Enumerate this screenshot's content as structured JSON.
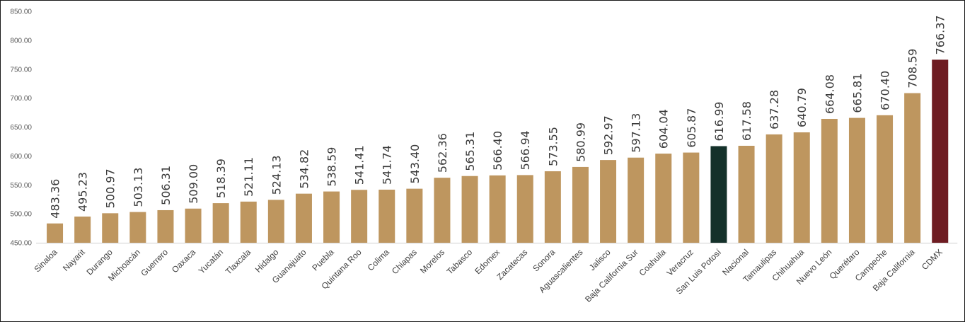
{
  "chart_data": {
    "type": "bar",
    "title": "",
    "xlabel": "",
    "ylabel": "",
    "ylim": [
      450,
      850
    ],
    "yticks": [
      "450.00",
      "500.00",
      "550.00",
      "600.00",
      "650.00",
      "700.00",
      "750.00",
      "800.00",
      "850.00"
    ],
    "grid": false,
    "legend": "none",
    "colors": {
      "default": "#BE965F",
      "highlight": "#14312A",
      "max": "#6E1C22"
    },
    "categories": [
      "Sinaloa",
      "Nayarit",
      "Durango",
      "Michoacán",
      "Guerrero",
      "Oaxaca",
      "Yucatán",
      "Tlaxcala",
      "Hidalgo",
      "Guanajuato",
      "Puebla",
      "Quintana Roo",
      "Colima",
      "Chiapas",
      "Morelos",
      "Tabasco",
      "Edomex",
      "Zacatecas",
      "Sonora",
      "Aguascalientes",
      "Jalisco",
      "Baja California Sur",
      "Coahuila",
      "Veracruz",
      "San Luis Potosí",
      "Nacional",
      "Tamaulipas",
      "Chihuahua",
      "Nuevo León",
      "Querétaro",
      "Campeche",
      "Baja California",
      "CDMX"
    ],
    "values": [
      483.36,
      495.23,
      500.97,
      503.13,
      506.31,
      509.0,
      518.39,
      521.11,
      524.13,
      534.82,
      538.59,
      541.41,
      541.74,
      543.4,
      562.36,
      565.31,
      566.4,
      566.94,
      573.55,
      580.99,
      592.97,
      597.13,
      604.04,
      605.87,
      616.99,
      617.58,
      637.28,
      640.79,
      664.08,
      665.81,
      670.4,
      708.59,
      766.37
    ],
    "data_labels": [
      "483.36",
      "495.23",
      "500.97",
      "503.13",
      "506.31",
      "509.00",
      "518.39",
      "521.11",
      "524.13",
      "534.82",
      "538.59",
      "541.41",
      "541.74",
      "543.40",
      "562.36",
      "565.31",
      "566.40",
      "566.94",
      "573.55",
      "580.99",
      "592.97",
      "597.13",
      "604.04",
      "605.87",
      "616.99",
      "617.58",
      "637.28",
      "640.79",
      "664.08",
      "665.81",
      "670.40",
      "708.59",
      "766.37"
    ],
    "highlighted": {
      "San Luis Potosí": "highlight",
      "CDMX": "max"
    }
  }
}
